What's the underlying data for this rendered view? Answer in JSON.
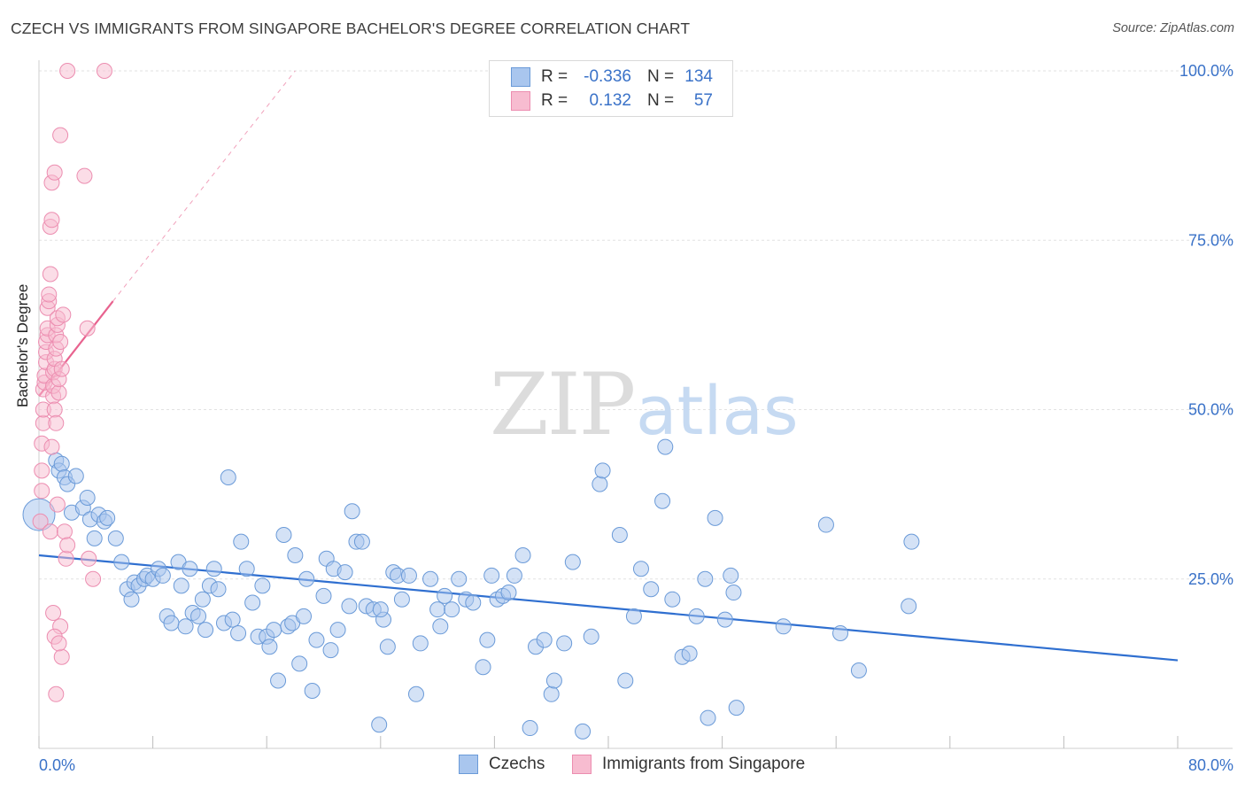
{
  "chart_data": {
    "type": "scatter",
    "title": "CZECH VS IMMIGRANTS FROM SINGAPORE BACHELOR'S DEGREE CORRELATION CHART",
    "source": "Source: ZipAtlas.com",
    "xlabel": "",
    "ylabel": "Bachelor's Degree",
    "xlim": [
      0,
      80
    ],
    "ylim": [
      0,
      100
    ],
    "x_tick_labels": [
      "0.0%",
      "80.0%"
    ],
    "y_tick_labels": [
      "100.0%",
      "75.0%",
      "50.0%",
      "25.0%"
    ],
    "y_tick_values": [
      100,
      75,
      50,
      25
    ],
    "watermark": {
      "zip": "ZIP",
      "atlas": "atlas"
    },
    "legend": [
      {
        "r_label": "R =",
        "r_value": "-0.336",
        "n_label": "N =",
        "n_value": "134"
      },
      {
        "r_label": "R =",
        "r_value": "0.132",
        "n_label": "N =",
        "n_value": "57"
      }
    ],
    "series": [
      {
        "name": "Czechs",
        "color": "#a9c6ee",
        "stroke": "#6a9ad8",
        "trend_color": "#2f6fd0",
        "trend": {
          "x0": 0,
          "y0": 28.5,
          "x1": 80,
          "y1": 13.0
        },
        "points": [
          [
            0.0,
            34.5
          ],
          [
            1.2,
            42.5
          ],
          [
            1.4,
            41.0
          ],
          [
            1.6,
            42.0
          ],
          [
            1.8,
            40.0
          ],
          [
            2.0,
            39.0
          ],
          [
            2.6,
            40.2
          ],
          [
            2.3,
            34.8
          ],
          [
            3.1,
            35.5
          ],
          [
            3.4,
            37.0
          ],
          [
            3.6,
            33.8
          ],
          [
            4.2,
            34.5
          ],
          [
            4.6,
            33.5
          ],
          [
            4.8,
            34.0
          ],
          [
            3.9,
            31.0
          ],
          [
            5.4,
            31.0
          ],
          [
            5.8,
            27.5
          ],
          [
            6.2,
            23.5
          ],
          [
            6.5,
            22.0
          ],
          [
            6.7,
            24.5
          ],
          [
            7.0,
            24.0
          ],
          [
            7.4,
            25.0
          ],
          [
            7.6,
            25.5
          ],
          [
            8.0,
            25.0
          ],
          [
            8.4,
            26.5
          ],
          [
            8.7,
            25.5
          ],
          [
            9.0,
            19.5
          ],
          [
            9.3,
            18.5
          ],
          [
            9.8,
            27.5
          ],
          [
            10.0,
            24.0
          ],
          [
            10.3,
            18.0
          ],
          [
            10.6,
            26.5
          ],
          [
            10.8,
            20.0
          ],
          [
            11.2,
            19.5
          ],
          [
            11.5,
            22.0
          ],
          [
            11.7,
            17.5
          ],
          [
            12.0,
            24.0
          ],
          [
            12.3,
            26.5
          ],
          [
            12.6,
            23.5
          ],
          [
            13.0,
            18.5
          ],
          [
            13.3,
            40.0
          ],
          [
            13.6,
            19.0
          ],
          [
            14.0,
            17.0
          ],
          [
            14.2,
            30.5
          ],
          [
            14.6,
            26.5
          ],
          [
            15.0,
            21.5
          ],
          [
            15.4,
            16.5
          ],
          [
            15.7,
            24.0
          ],
          [
            16.0,
            16.5
          ],
          [
            16.2,
            15.0
          ],
          [
            16.5,
            17.5
          ],
          [
            16.8,
            10.0
          ],
          [
            17.2,
            31.5
          ],
          [
            17.5,
            18.0
          ],
          [
            17.8,
            18.5
          ],
          [
            18.0,
            28.5
          ],
          [
            18.3,
            12.5
          ],
          [
            18.6,
            19.5
          ],
          [
            18.8,
            25.0
          ],
          [
            19.2,
            8.5
          ],
          [
            19.5,
            16.0
          ],
          [
            20.0,
            22.5
          ],
          [
            20.2,
            28.0
          ],
          [
            20.5,
            14.5
          ],
          [
            20.7,
            26.5
          ],
          [
            21.0,
            17.5
          ],
          [
            21.5,
            26.0
          ],
          [
            21.8,
            21.0
          ],
          [
            22.0,
            35.0
          ],
          [
            22.3,
            30.5
          ],
          [
            22.7,
            30.5
          ],
          [
            23.0,
            21.0
          ],
          [
            23.5,
            20.5
          ],
          [
            23.9,
            3.5
          ],
          [
            24.2,
            19.0
          ],
          [
            24.5,
            15.0
          ],
          [
            24.9,
            26.0
          ],
          [
            25.2,
            25.5
          ],
          [
            25.5,
            22.0
          ],
          [
            26.5,
            8.0
          ],
          [
            26.8,
            15.5
          ],
          [
            27.5,
            25.0
          ],
          [
            28.0,
            20.5
          ],
          [
            28.2,
            18.0
          ],
          [
            28.5,
            22.5
          ],
          [
            29.0,
            20.5
          ],
          [
            29.5,
            25.0
          ],
          [
            30.0,
            22.0
          ],
          [
            30.5,
            21.5
          ],
          [
            31.2,
            12.0
          ],
          [
            31.5,
            16.0
          ],
          [
            31.8,
            25.5
          ],
          [
            32.2,
            22.0
          ],
          [
            32.6,
            22.5
          ],
          [
            33.0,
            23.0
          ],
          [
            33.4,
            25.5
          ],
          [
            34.0,
            28.5
          ],
          [
            34.5,
            3.0
          ],
          [
            34.9,
            15.0
          ],
          [
            35.5,
            16.0
          ],
          [
            36.0,
            8.0
          ],
          [
            36.2,
            10.0
          ],
          [
            36.9,
            15.5
          ],
          [
            37.5,
            27.5
          ],
          [
            38.2,
            2.5
          ],
          [
            38.8,
            16.5
          ],
          [
            39.4,
            39.0
          ],
          [
            39.6,
            41.0
          ],
          [
            40.8,
            31.5
          ],
          [
            41.2,
            10.0
          ],
          [
            41.8,
            19.5
          ],
          [
            42.3,
            26.5
          ],
          [
            43.0,
            23.5
          ],
          [
            43.8,
            36.5
          ],
          [
            44.0,
            44.5
          ],
          [
            45.2,
            13.5
          ],
          [
            45.7,
            14.0
          ],
          [
            46.2,
            19.5
          ],
          [
            46.8,
            25.0
          ],
          [
            47.0,
            4.5
          ],
          [
            47.5,
            34.0
          ],
          [
            48.2,
            19.0
          ],
          [
            48.6,
            25.5
          ],
          [
            48.8,
            23.0
          ],
          [
            49.0,
            6.0
          ],
          [
            52.3,
            18.0
          ],
          [
            55.3,
            33.0
          ],
          [
            56.3,
            17.0
          ],
          [
            57.6,
            11.5
          ],
          [
            61.1,
            21.0
          ],
          [
            61.3,
            30.5
          ],
          [
            44.5,
            22.0
          ],
          [
            26.0,
            25.5
          ],
          [
            24.0,
            20.5
          ]
        ]
      },
      {
        "name": "Immigrants from Singapore",
        "color": "#f7bcd0",
        "stroke": "#ec8db0",
        "trend_color": "#e8638f",
        "trend": {
          "x0": 0,
          "y0": 52.0,
          "x1": 5.2,
          "y1": 66.0
        },
        "trend_dashed": {
          "x0": 5.2,
          "y0": 66.0,
          "x1": 18.0,
          "y1": 100.0
        },
        "points": [
          [
            0.1,
            33.5
          ],
          [
            0.2,
            38.0
          ],
          [
            0.2,
            41.0
          ],
          [
            0.2,
            45.0
          ],
          [
            0.3,
            48.0
          ],
          [
            0.3,
            50.0
          ],
          [
            0.3,
            53.0
          ],
          [
            0.4,
            54.0
          ],
          [
            0.4,
            55.0
          ],
          [
            0.5,
            57.0
          ],
          [
            0.5,
            58.5
          ],
          [
            0.5,
            60.0
          ],
          [
            0.6,
            61.0
          ],
          [
            0.6,
            62.0
          ],
          [
            0.6,
            65.0
          ],
          [
            0.7,
            66.0
          ],
          [
            0.7,
            67.0
          ],
          [
            0.8,
            70.0
          ],
          [
            0.8,
            77.0
          ],
          [
            0.9,
            78.0
          ],
          [
            0.9,
            83.5
          ],
          [
            1.0,
            52.0
          ],
          [
            1.0,
            53.5
          ],
          [
            1.0,
            55.5
          ],
          [
            1.1,
            56.0
          ],
          [
            1.1,
            57.5
          ],
          [
            1.2,
            59.0
          ],
          [
            1.2,
            61.0
          ],
          [
            1.3,
            62.5
          ],
          [
            1.3,
            63.5
          ],
          [
            1.4,
            52.5
          ],
          [
            1.4,
            54.5
          ],
          [
            1.5,
            60.0
          ],
          [
            1.6,
            56.0
          ],
          [
            1.7,
            64.0
          ],
          [
            1.1,
            50.0
          ],
          [
            1.2,
            48.0
          ],
          [
            0.9,
            44.5
          ],
          [
            0.8,
            32.0
          ],
          [
            1.3,
            36.0
          ],
          [
            1.5,
            18.0
          ],
          [
            1.6,
            13.5
          ],
          [
            1.8,
            32.0
          ],
          [
            1.9,
            28.0
          ],
          [
            2.0,
            30.0
          ],
          [
            1.2,
            8.0
          ],
          [
            1.0,
            20.0
          ],
          [
            1.1,
            16.5
          ],
          [
            1.4,
            15.5
          ],
          [
            3.5,
            28.0
          ],
          [
            3.8,
            25.0
          ],
          [
            3.4,
            62.0
          ],
          [
            1.1,
            85.0
          ],
          [
            1.5,
            90.5
          ],
          [
            3.2,
            84.5
          ],
          [
            2.0,
            100.0
          ],
          [
            4.6,
            100.0
          ]
        ]
      }
    ]
  }
}
